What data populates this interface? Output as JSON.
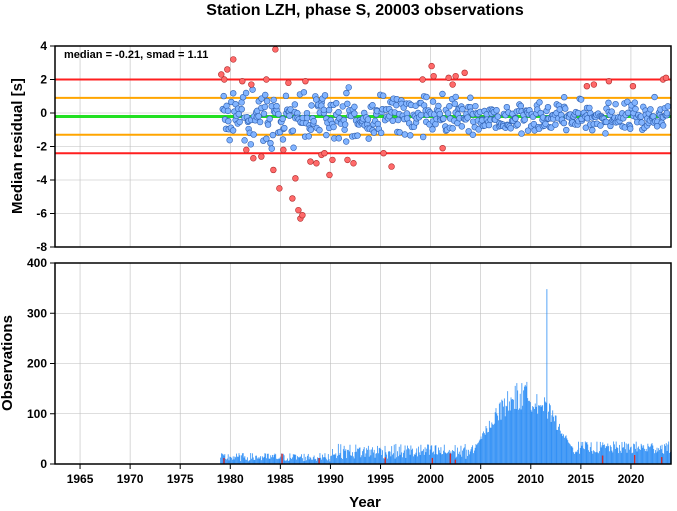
{
  "chart_data": [
    {
      "type": "scatter",
      "title": "Station LZH, phase S, 20003 observations",
      "ylabel": "Median residual [s]",
      "xlim": [
        1962.5,
        2024
      ],
      "ylim": [
        -8,
        4
      ],
      "x_ticks": [
        1965,
        1970,
        1975,
        1980,
        1985,
        1990,
        1995,
        2000,
        2005,
        2010,
        2015,
        2020
      ],
      "y_ticks": [
        4,
        2,
        0,
        -2,
        -4,
        -6,
        -8
      ],
      "grid": true,
      "annotation": "median = -0.21, smad = 1.11",
      "reference_lines": [
        {
          "value": 2.0,
          "color": "#ff1f1f"
        },
        {
          "value": 0.9,
          "color": "#ffa500"
        },
        {
          "value": -0.21,
          "color": "#22e022"
        },
        {
          "value": -1.3,
          "color": "#ffa500"
        },
        {
          "value": -2.4,
          "color": "#ff1f1f"
        }
      ],
      "colors": {
        "inlier": "#82b4ff",
        "outlier": "#ff6a6a"
      },
      "outliers": {
        "x": [
          1979.1,
          1979.4,
          1979.7,
          1980.3,
          1981.2,
          1981.6,
          1982.1,
          1982.3,
          1983.1,
          1983.6,
          1984.3,
          1984.5,
          1984.9,
          1985.3,
          1985.8,
          1986.2,
          1986.5,
          1986.8,
          1987.0,
          1987.2,
          1987.5,
          1988.0,
          1988.6,
          1989.1,
          1989.4,
          1989.9,
          1990.2,
          1991.7,
          1992.3,
          1995.3,
          1996.1,
          1999.2,
          2000.1,
          2000.3,
          2001.2,
          2001.8,
          2002.2,
          2002.5,
          2003.4,
          2015.6,
          2016.3,
          2017.8,
          2020.2,
          2023.2,
          2023.5
        ],
        "y": [
          2.3,
          2.0,
          2.6,
          3.2,
          1.9,
          -2.2,
          1.7,
          -2.7,
          -2.6,
          2.0,
          -3.4,
          3.8,
          -4.5,
          -2.2,
          1.8,
          -5.1,
          -3.9,
          -5.8,
          -6.3,
          -6.1,
          1.9,
          -2.9,
          -3.0,
          -2.5,
          -2.4,
          -3.7,
          -2.8,
          -2.8,
          -3.0,
          -2.4,
          -3.2,
          2.0,
          2.8,
          2.2,
          -2.1,
          2.1,
          1.7,
          2.2,
          2.4,
          1.6,
          1.7,
          1.9,
          1.6,
          2.0,
          2.1
        ]
      },
      "inliers_note": "about 500 residual points clustered near 0 between 1979 and 2024 (spread roughly ±2 s, tighter after 2004)"
    },
    {
      "type": "bar",
      "xlabel": "Year",
      "ylabel": "Observations",
      "xlim": [
        1962.5,
        2024
      ],
      "ylim": [
        0,
        400
      ],
      "x_ticks": [
        1965,
        1970,
        1975,
        1980,
        1985,
        1990,
        1995,
        2000,
        2005,
        2010,
        2015,
        2020
      ],
      "y_ticks": [
        0,
        100,
        200,
        300,
        400
      ],
      "grid": true,
      "colors": {
        "normal": "#2a8cf5",
        "outlier": "#d22a2a"
      },
      "periods": [
        {
          "from": 1979,
          "to": 1990,
          "range": [
            5,
            22
          ]
        },
        {
          "from": 1990,
          "to": 2004.5,
          "range": [
            10,
            40
          ]
        },
        {
          "from": 2004.5,
          "to": 2014,
          "range": [
            40,
            170
          ]
        },
        {
          "from": 2014,
          "to": 2024,
          "range": [
            20,
            45
          ]
        }
      ],
      "peak": {
        "x": 2011.6,
        "y": 348
      },
      "outlier_bars_x": [
        1979.3,
        1985.1,
        1988.8,
        1995.4,
        2000.1,
        2001.9,
        2002.4,
        2017.1,
        2020.3,
        2023.0
      ]
    }
  ]
}
